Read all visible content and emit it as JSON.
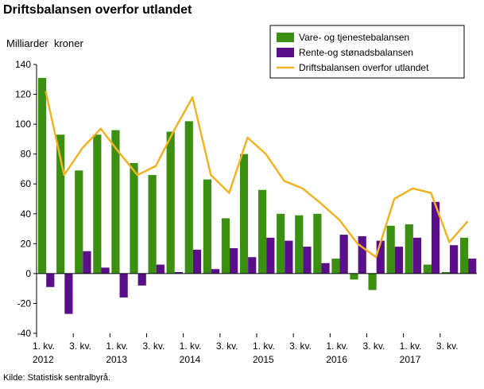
{
  "chart_data": {
    "type": "bar",
    "title": "Driftsbalansen overfor utlandet",
    "ylabel": "Milliarder  kroner",
    "source": "Kilde: Statistisk sentralbyrå.",
    "ylim": [
      -40,
      140
    ],
    "yticks": [
      -40,
      -20,
      0,
      20,
      40,
      60,
      80,
      100,
      120,
      140
    ],
    "grid": false,
    "legend_position": "top-right",
    "categories": [
      "2012K1",
      "2012K2",
      "2012K3",
      "2012K4",
      "2013K1",
      "2013K2",
      "2013K3",
      "2013K4",
      "2014K1",
      "2014K2",
      "2014K3",
      "2014K4",
      "2015K1",
      "2015K2",
      "2015K3",
      "2015K4",
      "2016K1",
      "2016K2",
      "2016K3",
      "2016K4",
      "2017K1",
      "2017K2",
      "2017K3",
      "2017K4"
    ],
    "x_tick_labels": [
      {
        "index": 0,
        "line1": "1. kv.",
        "line2": "2012"
      },
      {
        "index": 2,
        "line1": "3. kv.",
        "line2": ""
      },
      {
        "index": 4,
        "line1": "1. kv.",
        "line2": "2013"
      },
      {
        "index": 6,
        "line1": "3. kv.",
        "line2": ""
      },
      {
        "index": 8,
        "line1": "1. kv.",
        "line2": "2014"
      },
      {
        "index": 10,
        "line1": "3. kv.",
        "line2": ""
      },
      {
        "index": 12,
        "line1": "1. kv.",
        "line2": "2015"
      },
      {
        "index": 14,
        "line1": "3. kv.",
        "line2": ""
      },
      {
        "index": 16,
        "line1": "1. kv.",
        "line2": "2016"
      },
      {
        "index": 18,
        "line1": "3. kv.",
        "line2": ""
      },
      {
        "index": 20,
        "line1": "1. kv.",
        "line2": "2017"
      },
      {
        "index": 22,
        "line1": "3. kv.",
        "line2": ""
      }
    ],
    "series": [
      {
        "name": "Vare- og tjenestebalansen",
        "kind": "bar",
        "color": "#3b8f11",
        "values": [
          131,
          93,
          69,
          93,
          96,
          74,
          66,
          95,
          102,
          63,
          37,
          80,
          56,
          40,
          39,
          40,
          10,
          -4,
          -11,
          32,
          33,
          6,
          1,
          24
        ]
      },
      {
        "name": "Rente-og stønadsbalansen",
        "kind": "bar",
        "color": "#5a0e8a",
        "values": [
          -9,
          -27,
          15,
          4,
          -16,
          -8,
          6,
          1,
          16,
          3,
          17,
          11,
          24,
          22,
          18,
          7,
          26,
          25,
          22,
          18,
          24,
          48,
          19,
          10
        ]
      },
      {
        "name": "Driftsbalansen overfor utlandet",
        "kind": "line",
        "color": "#f0b323",
        "values": [
          122,
          66,
          84,
          97,
          81,
          66,
          72,
          96,
          118,
          66,
          54,
          91,
          80,
          62,
          57,
          47,
          36,
          20,
          11,
          50,
          57,
          54,
          21,
          35
        ]
      }
    ]
  }
}
